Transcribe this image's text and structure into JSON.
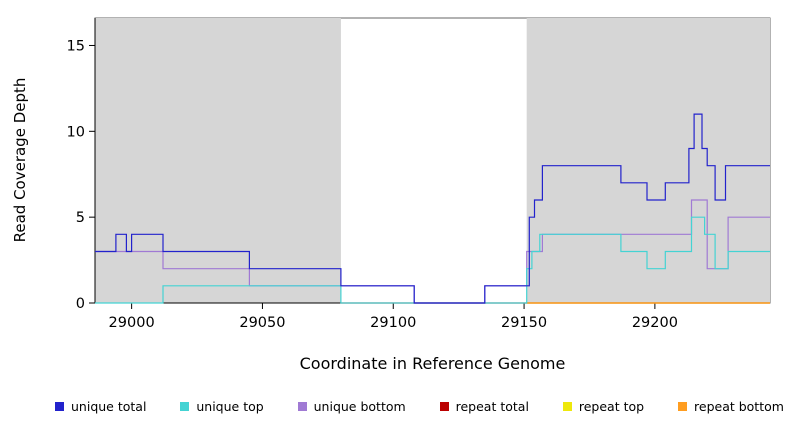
{
  "chart_data": {
    "type": "line",
    "style": "step",
    "title": "",
    "xlabel": "Coordinate in Reference Genome",
    "ylabel": "Read Coverage Depth",
    "xlim": [
      28986,
      29244
    ],
    "ylim": [
      0,
      16.6
    ],
    "x_ticks": [
      29000,
      29050,
      29100,
      29150,
      29200
    ],
    "y_ticks": [
      0,
      5,
      10,
      15
    ],
    "grid": false,
    "legend_position": "bottom",
    "background": "#ffffff",
    "frame_color": "#666666",
    "axis_color": "#000000",
    "shaded_region_color": "#d6d6d6",
    "shaded_regions": [
      {
        "x0": 28986,
        "x1": 29080
      },
      {
        "x0": 29151,
        "x1": 29244
      }
    ],
    "series": [
      {
        "name": "unique total",
        "color": "#2222cc",
        "steps": [
          [
            28986,
            3
          ],
          [
            28994,
            4
          ],
          [
            28998,
            3
          ],
          [
            29000,
            4
          ],
          [
            29012,
            3
          ],
          [
            29045,
            2
          ],
          [
            29080,
            1
          ],
          [
            29108,
            0
          ],
          [
            29135,
            1
          ],
          [
            29152,
            5
          ],
          [
            29154,
            6
          ],
          [
            29157,
            8
          ],
          [
            29187,
            7
          ],
          [
            29197,
            6
          ],
          [
            29204,
            7
          ],
          [
            29213,
            9
          ],
          [
            29215,
            11
          ],
          [
            29218,
            9
          ],
          [
            29220,
            8
          ],
          [
            29223,
            6
          ],
          [
            29227,
            8
          ]
        ]
      },
      {
        "name": "unique top",
        "color": "#44d3d3",
        "steps": [
          [
            28986,
            0
          ],
          [
            29012,
            1
          ],
          [
            29080,
            0
          ],
          [
            29151,
            2
          ],
          [
            29153,
            3
          ],
          [
            29156,
            4
          ],
          [
            29187,
            3
          ],
          [
            29197,
            2
          ],
          [
            29204,
            3
          ],
          [
            29214,
            5
          ],
          [
            29219,
            4
          ],
          [
            29223,
            2
          ],
          [
            29228,
            3
          ]
        ]
      },
      {
        "name": "unique bottom",
        "color": "#a07ad4",
        "steps": [
          [
            28986,
            3
          ],
          [
            29012,
            2
          ],
          [
            29045,
            1
          ],
          [
            29108,
            0
          ],
          [
            29135,
            1
          ],
          [
            29151,
            3
          ],
          [
            29157,
            4
          ],
          [
            29214,
            6
          ],
          [
            29220,
            2
          ],
          [
            29228,
            5
          ]
        ]
      },
      {
        "name": "repeat total",
        "color": "#bb0000",
        "steps": [
          [
            29080,
            0
          ]
        ]
      },
      {
        "name": "repeat top",
        "color": "#eee80c",
        "steps": [
          [
            29151,
            0
          ]
        ]
      },
      {
        "name": "repeat bottom",
        "color": "#ff9d20",
        "steps": [
          [
            29151,
            0
          ]
        ]
      }
    ]
  }
}
